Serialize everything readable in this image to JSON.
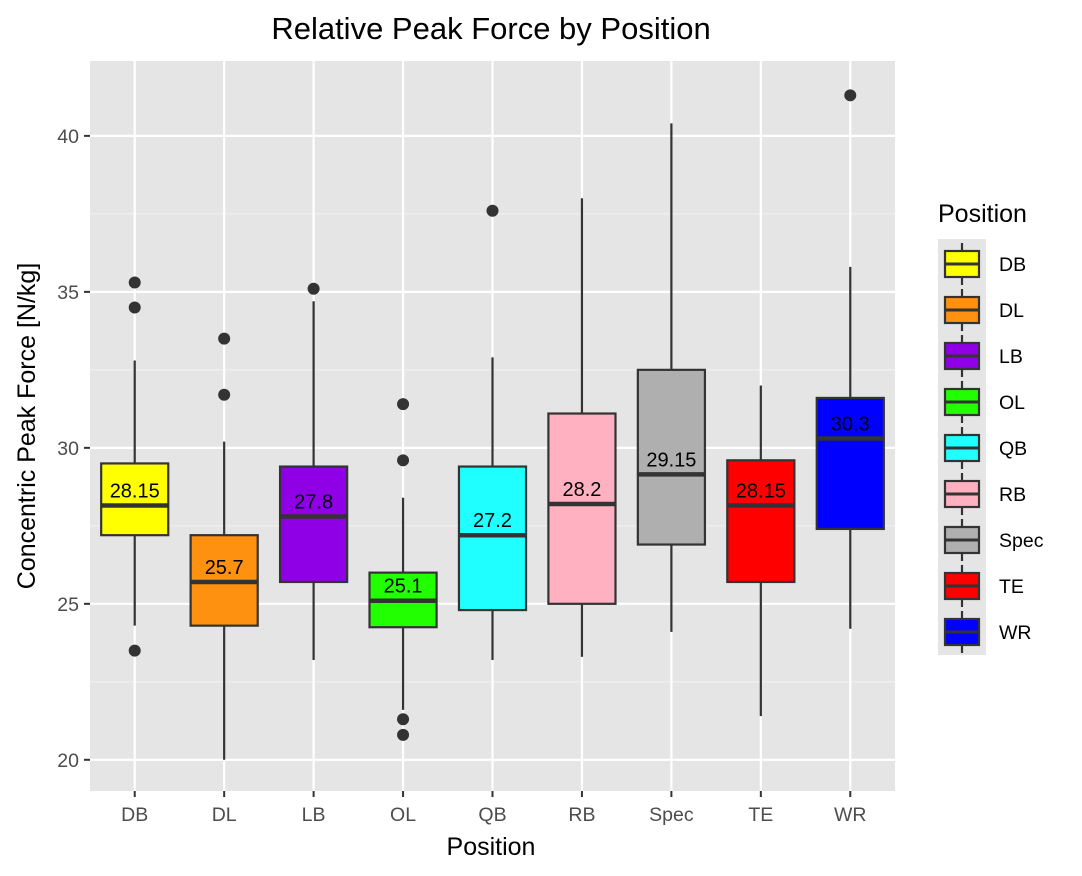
{
  "chart_data": {
    "type": "box",
    "title": "Relative Peak Force by Position",
    "xlabel": "Position",
    "ylabel": "Concentric Peak Force [N/kg]",
    "ylim": [
      19,
      42.4
    ],
    "yticks": [
      20,
      25,
      30,
      35,
      40
    ],
    "grid": true,
    "legend": {
      "title": "Position",
      "position": "right"
    },
    "categories": [
      "DB",
      "DL",
      "LB",
      "OL",
      "QB",
      "RB",
      "Spec",
      "TE",
      "WR"
    ],
    "series": [
      {
        "name": "DB",
        "color": "#FFFF00",
        "whisker_low": 24.3,
        "q1": 27.2,
        "median": 28.15,
        "q3": 29.5,
        "whisker_high": 32.8,
        "outliers": [
          35.3,
          34.5,
          23.5
        ],
        "median_label": "28.15"
      },
      {
        "name": "DL",
        "color": "#FF9110",
        "whisker_low": 20.0,
        "q1": 24.3,
        "median": 25.7,
        "q3": 27.2,
        "whisker_high": 30.2,
        "outliers": [
          33.5,
          31.7
        ],
        "median_label": "25.7"
      },
      {
        "name": "LB",
        "color": "#8F00E6",
        "whisker_low": 23.2,
        "q1": 25.7,
        "median": 27.8,
        "q3": 29.4,
        "whisker_high": 34.7,
        "outliers": [
          35.1
        ],
        "median_label": "27.8"
      },
      {
        "name": "OL",
        "color": "#22FF00",
        "whisker_low": 21.6,
        "q1": 24.25,
        "median": 25.1,
        "q3": 26.0,
        "whisker_high": 28.4,
        "outliers": [
          31.4,
          29.6,
          21.3,
          20.8
        ],
        "median_label": "25.1"
      },
      {
        "name": "QB",
        "color": "#1FFFFF",
        "whisker_low": 23.2,
        "q1": 24.8,
        "median": 27.2,
        "q3": 29.4,
        "whisker_high": 32.9,
        "outliers": [
          37.6
        ],
        "median_label": "27.2"
      },
      {
        "name": "RB",
        "color": "#FFB1C1",
        "whisker_low": 23.3,
        "q1": 25.0,
        "median": 28.2,
        "q3": 31.1,
        "whisker_high": 38.0,
        "outliers": [],
        "median_label": "28.2"
      },
      {
        "name": "Spec",
        "color": "#AFAFAF",
        "whisker_low": 24.1,
        "q1": 26.9,
        "median": 29.15,
        "q3": 32.5,
        "whisker_high": 40.4,
        "outliers": [],
        "median_label": "29.15"
      },
      {
        "name": "TE",
        "color": "#FF0000",
        "whisker_low": 21.4,
        "q1": 25.7,
        "median": 28.15,
        "q3": 29.6,
        "whisker_high": 32.0,
        "outliers": [],
        "median_label": "28.15"
      },
      {
        "name": "WR",
        "color": "#0000FF",
        "whisker_low": 24.2,
        "q1": 27.4,
        "median": 30.3,
        "q3": 31.6,
        "whisker_high": 35.8,
        "outliers": [
          41.3
        ],
        "median_label": "30.3"
      }
    ]
  }
}
